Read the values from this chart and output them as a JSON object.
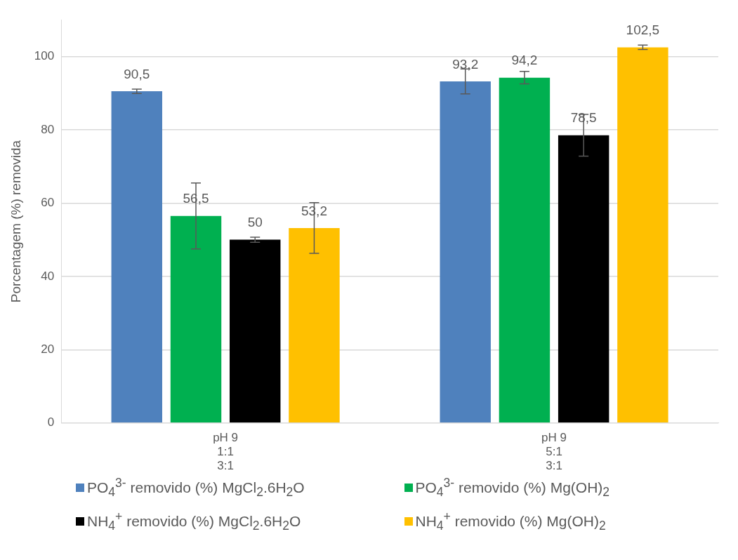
{
  "chart_data": {
    "type": "bar",
    "ylabel": "Porcentagem (%) removida",
    "categories": [
      "pH 9\n1:1\n3:1",
      "pH 9\n5:1\n3:1"
    ],
    "series": [
      {
        "name": "PO$_{4}$$^{3-}$ removido (%) MgCl$_{2}$.6H$_{2}$O",
        "color": "#4f81bd",
        "values": [
          90.5,
          93.2
        ],
        "errors": [
          0.6,
          3.4
        ],
        "value_labels": [
          "90,5",
          "93,2"
        ]
      },
      {
        "name": "PO$_{4}$$^{3-}$ removido (%) Mg(OH)$_{2}$",
        "color": "#00b050",
        "values": [
          56.5,
          94.2
        ],
        "errors": [
          9,
          1.7
        ],
        "value_labels": [
          "56,5",
          "94,2"
        ]
      },
      {
        "name": "NH$_{4}$$^{+}$ removido (%) MgCl$_{2}$.6H$_{2}$O",
        "color": "#000000",
        "values": [
          50,
          78.5
        ],
        "errors": [
          0.7,
          5.7
        ],
        "value_labels": [
          "50",
          "78,5"
        ]
      },
      {
        "name": "NH$_{4}$$^{+}$ removido (%) Mg(OH)$_{2}$",
        "color": "#ffc000",
        "values": [
          53.2,
          102.5
        ],
        "errors": [
          6.9,
          0.6
        ],
        "value_labels": [
          "53,2",
          "102,5"
        ]
      }
    ],
    "ylim": [
      0,
      110
    ],
    "yticks": [
      0,
      20,
      40,
      60,
      80,
      100
    ],
    "grid": "y",
    "legend": "bottom"
  }
}
